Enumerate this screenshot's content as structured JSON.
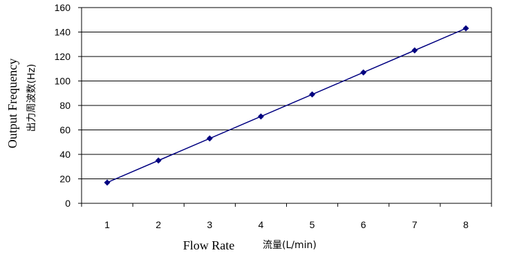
{
  "chart_data": {
    "type": "line",
    "x": [
      1,
      2,
      3,
      4,
      5,
      6,
      7,
      8
    ],
    "series": [
      {
        "values": [
          17,
          35,
          53,
          71,
          89,
          107,
          125,
          143
        ],
        "color": "#000080"
      }
    ],
    "xlabel": "Flow Rate",
    "xlabel_jp": "流量(L/min)",
    "ylabel": "Output Frequency",
    "ylabel_jp": "出力周波数(Hz)",
    "ylim": [
      0,
      160
    ],
    "yticks": [
      0,
      20,
      40,
      60,
      80,
      100,
      120,
      140,
      160
    ],
    "xticks": [
      1,
      2,
      3,
      4,
      5,
      6,
      7,
      8
    ],
    "grid": true,
    "legend": "none"
  }
}
